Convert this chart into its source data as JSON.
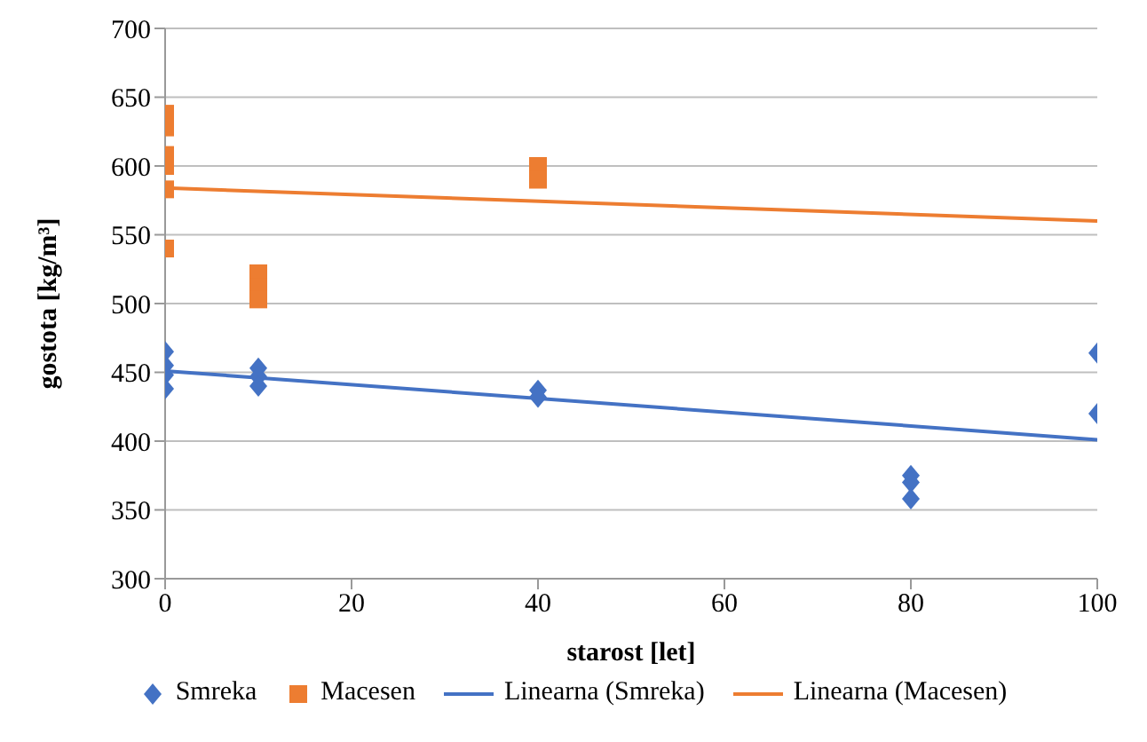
{
  "chart_data": {
    "type": "scatter",
    "xlabel": "starost [let]",
    "ylabel": "gostota [kg/m³]",
    "xlim": [
      0,
      100
    ],
    "xticks": [
      0,
      20,
      40,
      60,
      80,
      100
    ],
    "ylim": [
      300,
      700
    ],
    "yticks": [
      300,
      350,
      400,
      450,
      500,
      550,
      600,
      650,
      700
    ],
    "grid": "y",
    "legend": "bottom",
    "series": [
      {
        "name": "Smreka",
        "marker": "diamond",
        "color": "#4472c4",
        "x": [
          0,
          0,
          0,
          0,
          10,
          10,
          10,
          40,
          40,
          80,
          80,
          80,
          100,
          100
        ],
        "values": [
          465,
          455,
          448,
          438,
          453,
          447,
          440,
          437,
          432,
          375,
          370,
          358,
          464,
          420
        ]
      },
      {
        "name": "Macesen",
        "marker": "square",
        "color": "#ed7d31",
        "x": [
          0,
          0,
          0,
          0,
          0,
          0,
          10,
          10,
          10,
          40,
          40
        ],
        "values": [
          638,
          628,
          608,
          600,
          583,
          540,
          522,
          512,
          503,
          600,
          590
        ]
      },
      {
        "name": "Linearna (Smreka)",
        "type": "line",
        "marker": "none",
        "color": "#4472c4",
        "x": [
          0,
          100
        ],
        "values": [
          451,
          401
        ]
      },
      {
        "name": "Linearna (Macesen)",
        "type": "line",
        "marker": "none",
        "color": "#ed7d31",
        "x": [
          0,
          100
        ],
        "values": [
          584,
          560
        ]
      }
    ]
  }
}
